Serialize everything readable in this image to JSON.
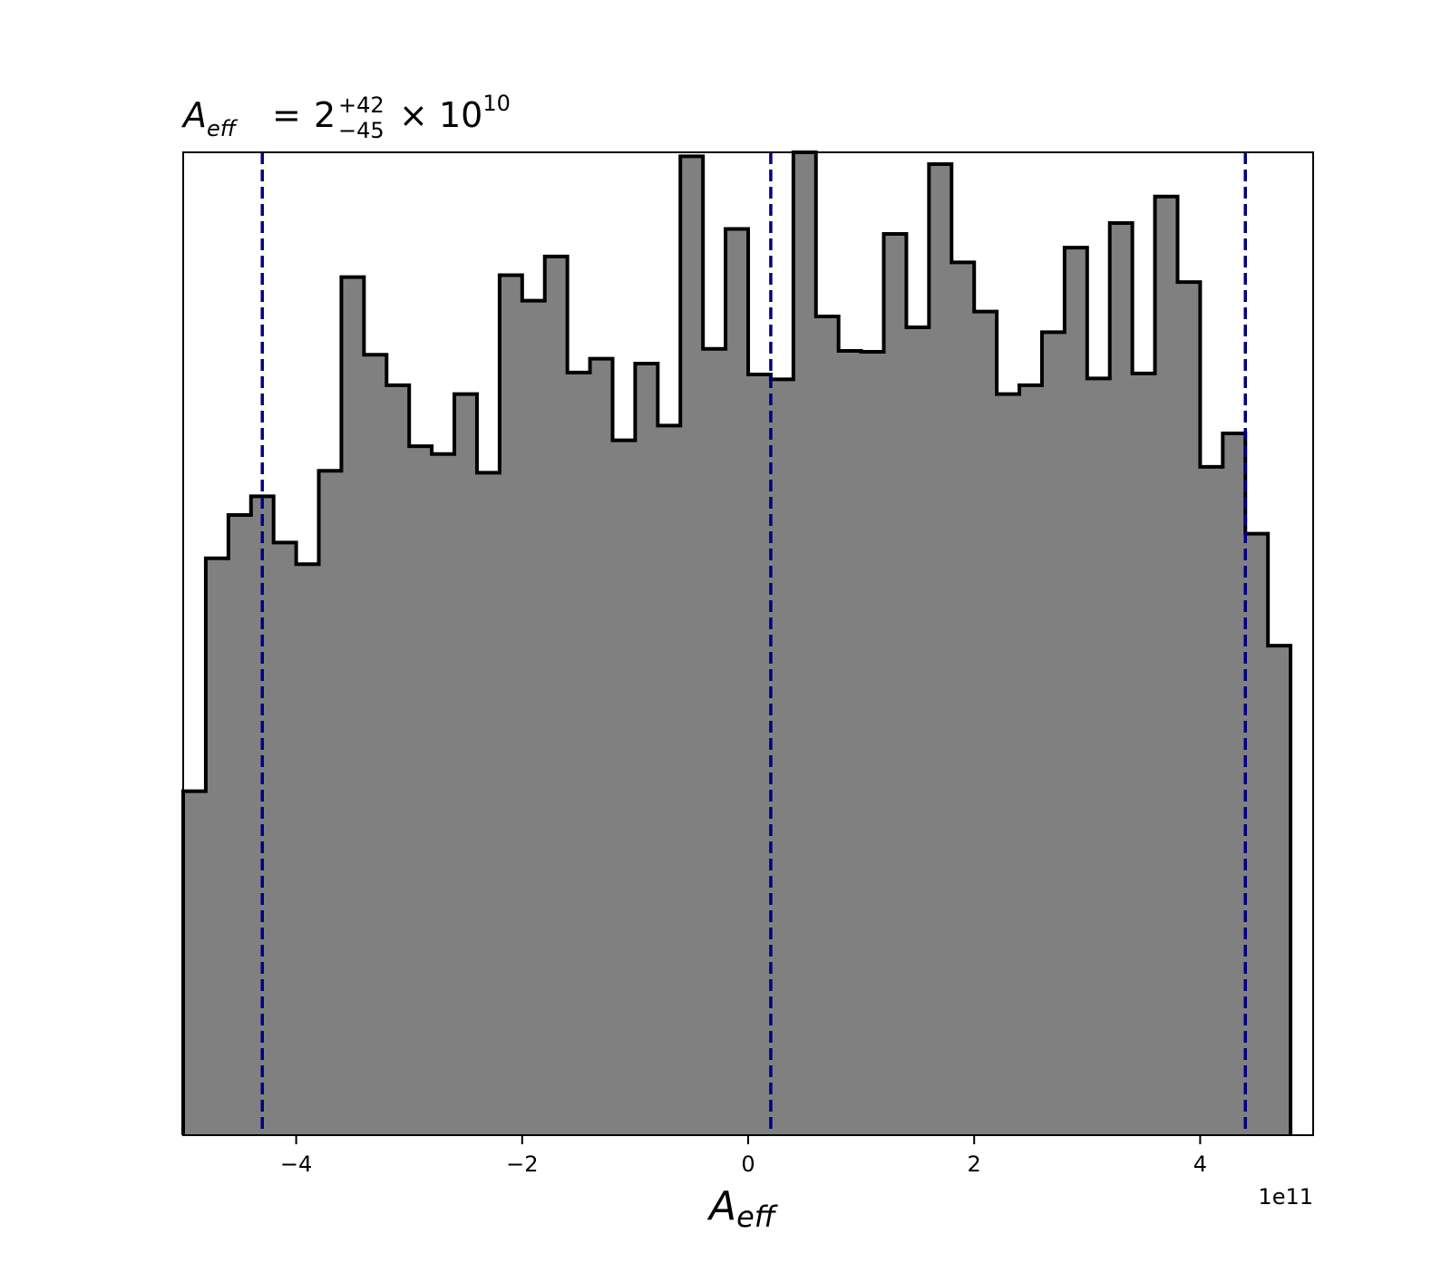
{
  "chart_data": {
    "type": "histogram",
    "title": {
      "symbol_main": "A",
      "symbol_sub": "eff",
      "equals": "=",
      "value": "2",
      "upper": "+42",
      "lower": "−45",
      "times": "×",
      "base": "10",
      "exponent": "10"
    },
    "xlabel": {
      "main": "A",
      "sub": "eff"
    },
    "ylabel": "",
    "x_offset_label": "1e11",
    "x_scale": 100000000000,
    "xlim": [
      -5.0,
      5.0
    ],
    "ylim": [
      0,
      1.0
    ],
    "x_ticks": [
      {
        "value": -4,
        "label": "−4"
      },
      {
        "value": -2,
        "label": "−2"
      },
      {
        "value": 0,
        "label": "0"
      },
      {
        "value": 2,
        "label": "2"
      },
      {
        "value": 4,
        "label": "4"
      }
    ],
    "bins": {
      "start": -5.0,
      "width": 0.2,
      "heights": [
        0.35,
        0.587,
        0.631,
        0.65,
        0.603,
        0.581,
        0.676,
        0.873,
        0.794,
        0.763,
        0.701,
        0.693,
        0.754,
        0.674,
        0.875,
        0.849,
        0.894,
        0.776,
        0.79,
        0.707,
        0.785,
        0.722,
        0.996,
        0.8,
        0.922,
        0.774,
        0.769,
        1.0,
        0.833,
        0.798,
        0.797,
        0.917,
        0.822,
        0.988,
        0.888,
        0.838,
        0.754,
        0.763,
        0.817,
        0.903,
        0.77,
        0.928,
        0.775,
        0.955,
        0.868,
        0.68,
        0.714,
        0.612,
        0.498
      ]
    },
    "fill_color": "#808080",
    "edge_color": "#000000",
    "reference_lines": {
      "values": [
        -4.3,
        0.2,
        4.4
      ],
      "color": "#000080",
      "style": "dashed"
    },
    "grid": false,
    "legend": "none"
  }
}
